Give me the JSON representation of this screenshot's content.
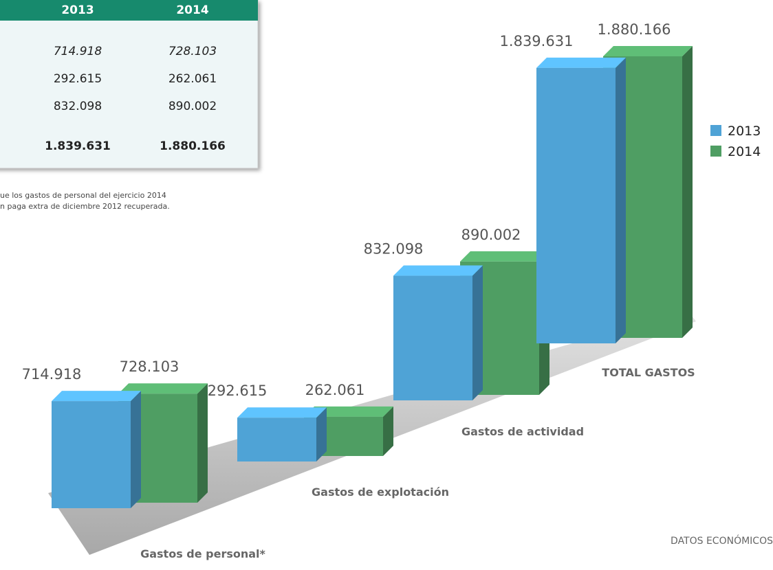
{
  "table": {
    "header": [
      "2013",
      "2014"
    ],
    "rows": [
      [
        "714.918",
        "728.103"
      ],
      [
        "292.615",
        "262.061"
      ],
      [
        "832.098",
        "890.002"
      ],
      [
        "1.839.631",
        "1.880.166"
      ]
    ]
  },
  "note": [
    "ue los gastos de personal del ejercicio 2014",
    "n paga extra de diciembre 2012 recuperada."
  ],
  "footer": "DATOS ECONÓMICOS",
  "chart_data": {
    "type": "bar3d",
    "categories": [
      "Gastos de personal*",
      "Gastos de explotación",
      "Gastos de actividad",
      "TOTAL GASTOS"
    ],
    "series": [
      {
        "name": "2013",
        "color": "#4fa3d6",
        "values": [
          714918,
          292615,
          832098,
          1839631
        ],
        "value_labels": [
          "714.918",
          "292.615",
          "832.098",
          "1.839.631"
        ]
      },
      {
        "name": "2014",
        "color": "#4f9e63",
        "values": [
          728103,
          262061,
          890002,
          1880166
        ],
        "value_labels": [
          "728.103",
          "262.061",
          "890.002",
          "1.880.166"
        ]
      }
    ]
  }
}
